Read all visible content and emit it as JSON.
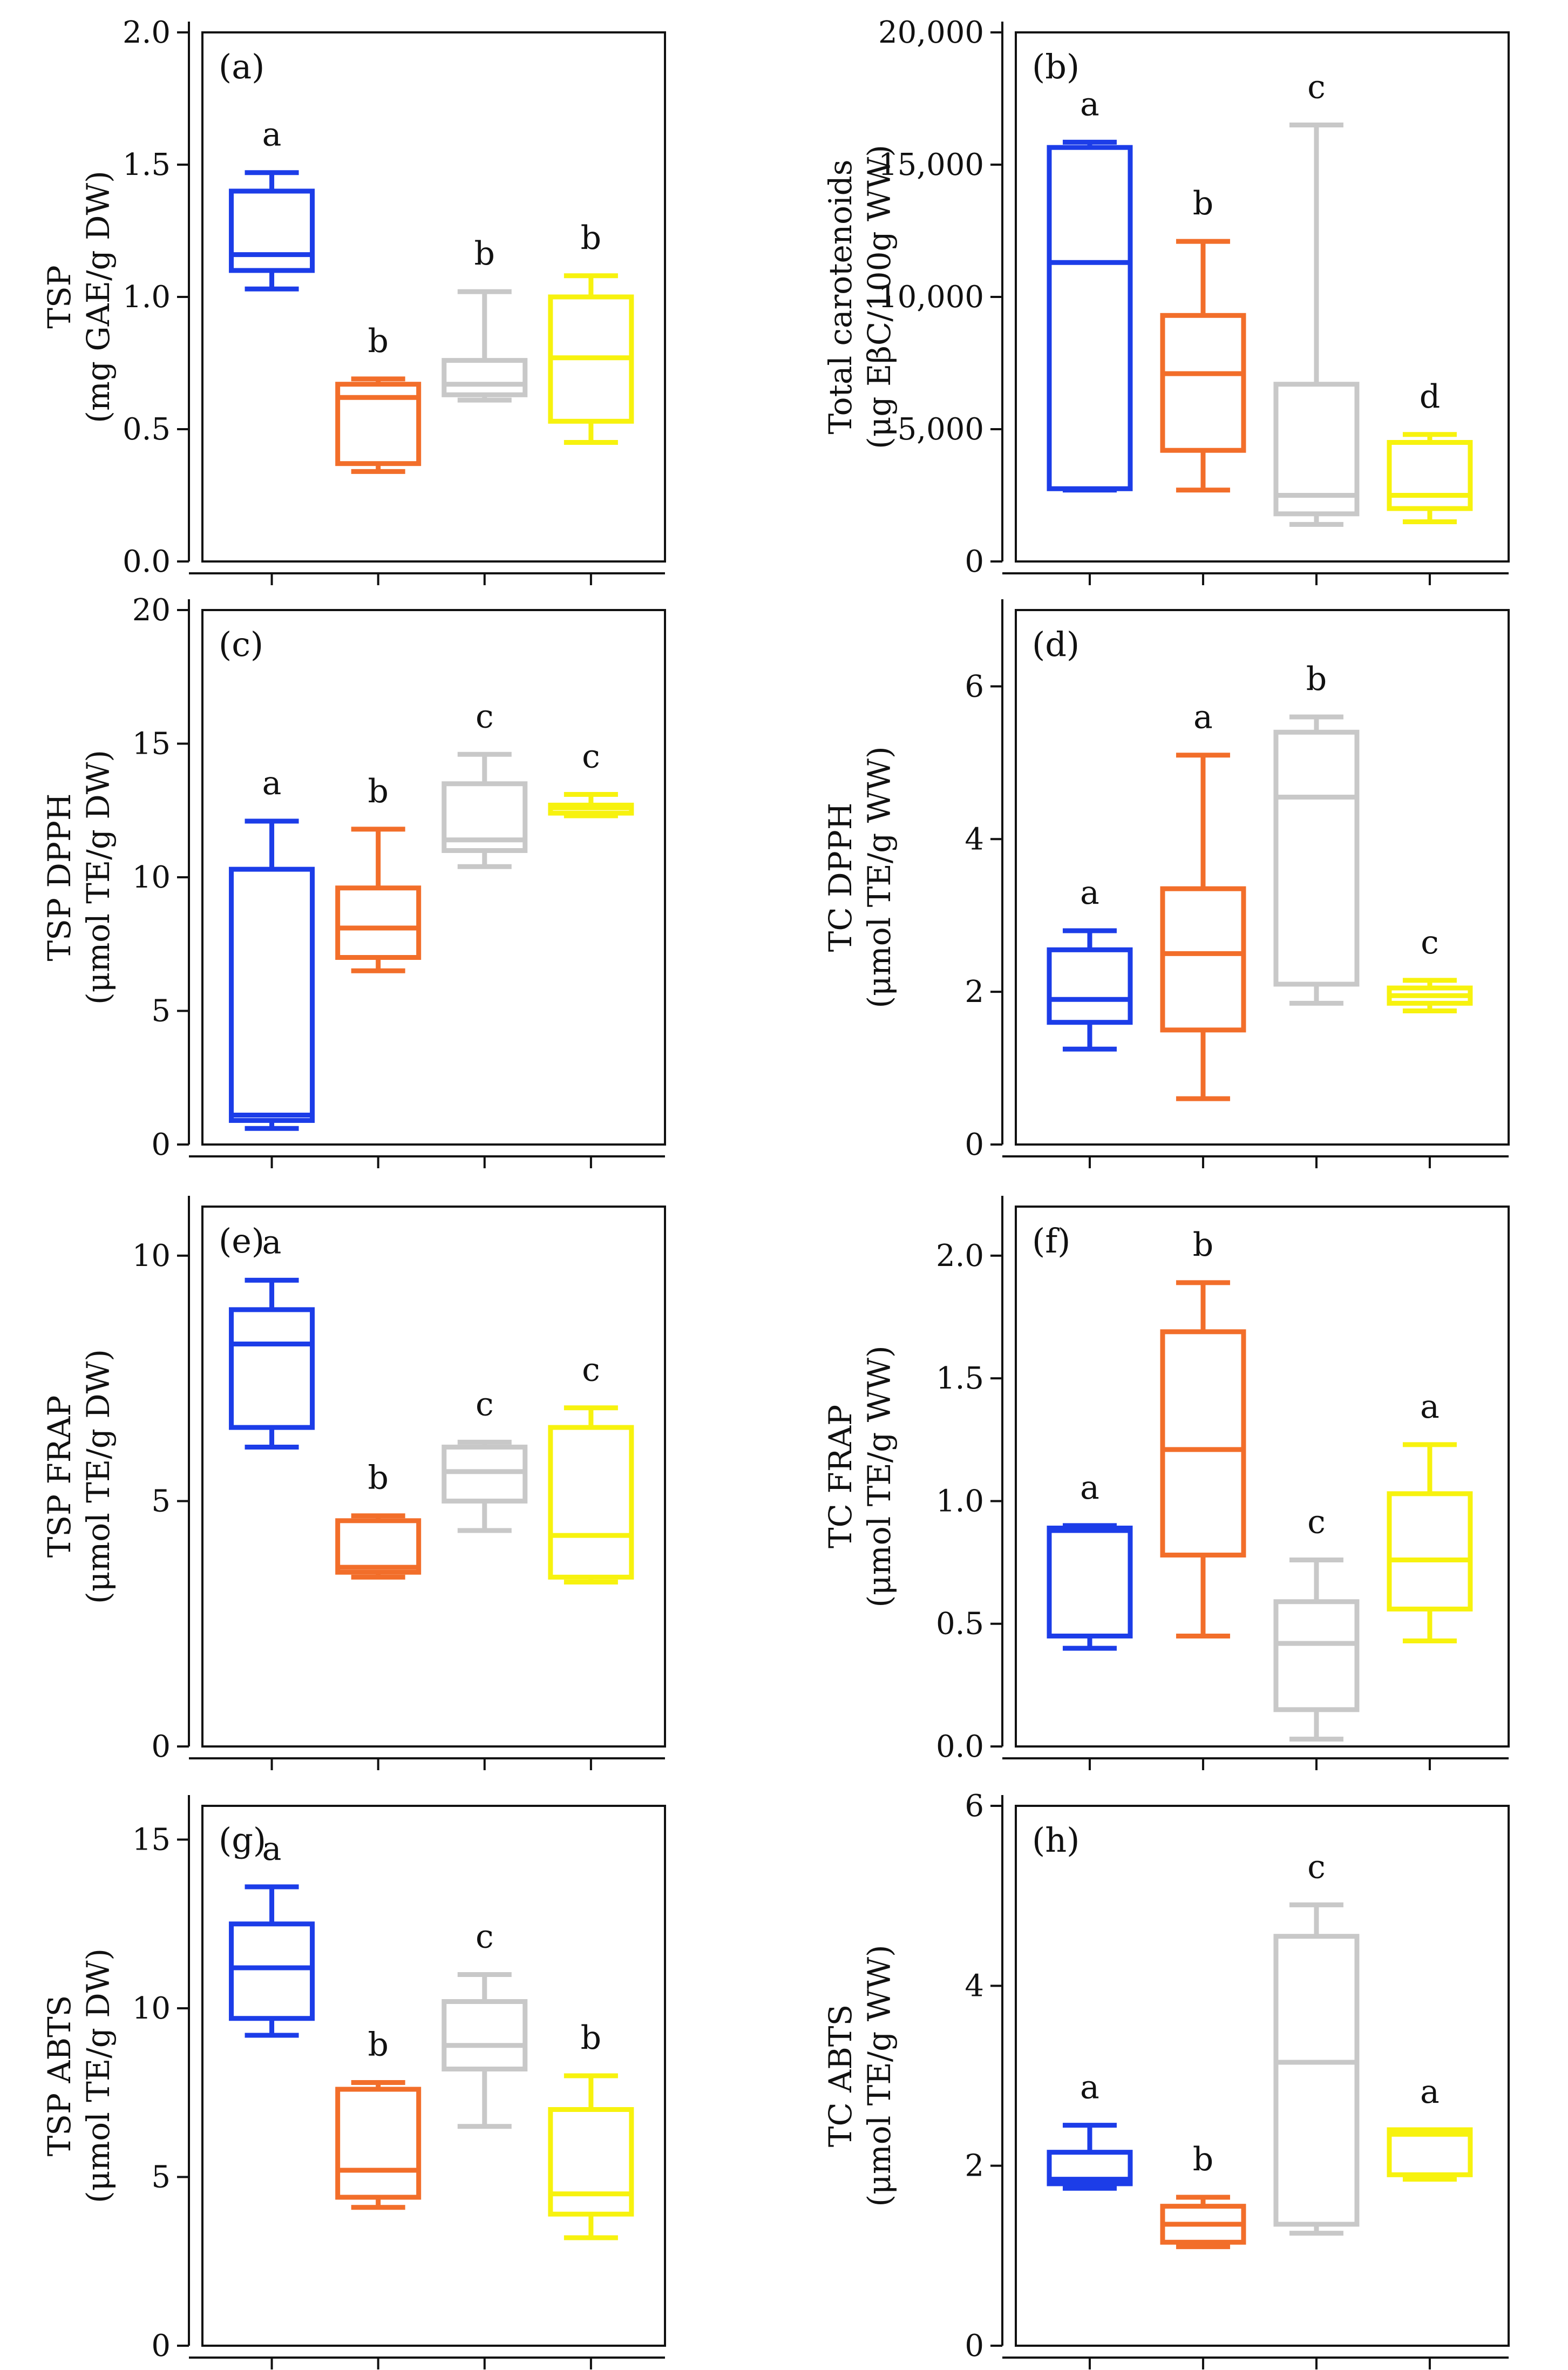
{
  "colors": [
    "#1c3de8",
    "#f26e2a",
    "#c8c8c8",
    "#f7f20e"
  ],
  "chart_data": [
    {
      "type": "box",
      "panel": "(a)",
      "ylabel": [
        "TSP",
        "(mg GAE/g DW)"
      ],
      "ylim": [
        0,
        2.0
      ],
      "yticks": [
        0,
        0.5,
        1.0,
        1.5,
        2.0
      ],
      "ytick_labels": [
        "0.0",
        "0.5",
        "1.0",
        "1.5",
        "2.0"
      ],
      "boxes": [
        {
          "min": 1.03,
          "q1": 1.1,
          "median": 1.16,
          "q3": 1.4,
          "max": 1.47,
          "letter": "a"
        },
        {
          "min": 0.34,
          "q1": 0.37,
          "median": 0.62,
          "q3": 0.67,
          "max": 0.69,
          "letter": "b"
        },
        {
          "min": 0.61,
          "q1": 0.63,
          "median": 0.67,
          "q3": 0.76,
          "max": 1.02,
          "letter": "b"
        },
        {
          "min": 0.45,
          "q1": 0.53,
          "median": 0.77,
          "q3": 1.0,
          "max": 1.08,
          "letter": "b"
        }
      ]
    },
    {
      "type": "box",
      "panel": "(b)",
      "ylabel": [
        "Total carotenoids",
        "(μg EβC/100g WW)"
      ],
      "ylim": [
        0,
        20000
      ],
      "yticks": [
        0,
        5000,
        10000,
        15000,
        20000
      ],
      "ytick_labels": [
        "0",
        "5,000",
        "10,000",
        "15,000",
        "20,000"
      ],
      "boxes": [
        {
          "min": 2700,
          "q1": 2750,
          "median": 11300,
          "q3": 15650,
          "max": 15850,
          "letter": "a"
        },
        {
          "min": 2700,
          "q1": 4200,
          "median": 7100,
          "q3": 9300,
          "max": 12100,
          "letter": "b"
        },
        {
          "min": 1400,
          "q1": 1800,
          "median": 2500,
          "q3": 6700,
          "max": 16500,
          "letter": "c"
        },
        {
          "min": 1500,
          "q1": 2000,
          "median": 2500,
          "q3": 4500,
          "max": 4800,
          "letter": "d"
        }
      ]
    },
    {
      "type": "box",
      "panel": "(c)",
      "ylabel": [
        "TSP DPPH",
        "(μmol TE/g DW)"
      ],
      "ylim": [
        0,
        20
      ],
      "yticks": [
        0,
        5,
        10,
        15,
        20
      ],
      "ytick_labels": [
        "0",
        "5",
        "10",
        "15",
        "20"
      ],
      "boxes": [
        {
          "min": 0.6,
          "q1": 0.9,
          "median": 1.1,
          "q3": 10.3,
          "max": 12.1,
          "letter": "a"
        },
        {
          "min": 6.5,
          "q1": 7.0,
          "median": 8.1,
          "q3": 9.6,
          "max": 11.8,
          "letter": "b"
        },
        {
          "min": 10.4,
          "q1": 11.0,
          "median": 11.4,
          "q3": 13.5,
          "max": 14.6,
          "letter": "c"
        },
        {
          "min": 12.3,
          "q1": 12.4,
          "median": 12.6,
          "q3": 12.7,
          "max": 13.1,
          "letter": "c"
        }
      ]
    },
    {
      "type": "box",
      "panel": "(d)",
      "ylabel": [
        "TC DPPH",
        "(μmol TE/g WW)"
      ],
      "ylim": [
        0,
        7
      ],
      "yticks": [
        0,
        2,
        4,
        6
      ],
      "ytick_labels": [
        "0",
        "2",
        "4",
        "6"
      ],
      "boxes": [
        {
          "min": 1.25,
          "q1": 1.6,
          "median": 1.9,
          "q3": 2.55,
          "max": 2.8,
          "letter": "a"
        },
        {
          "min": 0.6,
          "q1": 1.5,
          "median": 2.5,
          "q3": 3.35,
          "max": 5.1,
          "letter": "a"
        },
        {
          "min": 1.85,
          "q1": 2.1,
          "median": 4.55,
          "q3": 5.4,
          "max": 5.6,
          "letter": "b"
        },
        {
          "min": 1.75,
          "q1": 1.85,
          "median": 1.95,
          "q3": 2.05,
          "max": 2.15,
          "letter": "c"
        }
      ]
    },
    {
      "type": "box",
      "panel": "(e)",
      "ylabel": [
        "TSP FRAP",
        "(μmol TE/g DW)"
      ],
      "ylim": [
        0,
        11
      ],
      "yticks": [
        0,
        5,
        10
      ],
      "ytick_labels": [
        "0",
        "5",
        "10"
      ],
      "boxes": [
        {
          "min": 6.1,
          "q1": 6.5,
          "median": 8.2,
          "q3": 8.9,
          "max": 9.5,
          "letter": "a"
        },
        {
          "min": 3.45,
          "q1": 3.55,
          "median": 3.65,
          "q3": 4.6,
          "max": 4.7,
          "letter": "b"
        },
        {
          "min": 4.4,
          "q1": 5.0,
          "median": 5.6,
          "q3": 6.1,
          "max": 6.2,
          "letter": "c"
        },
        {
          "min": 3.35,
          "q1": 3.45,
          "median": 4.3,
          "q3": 6.5,
          "max": 6.9,
          "letter": "c"
        }
      ]
    },
    {
      "type": "box",
      "panel": "(f)",
      "ylabel": [
        "TC FRAP",
        "(μmol TE/g WW)"
      ],
      "ylim": [
        0,
        2.2
      ],
      "yticks": [
        0,
        0.5,
        1.0,
        1.5,
        2.0
      ],
      "ytick_labels": [
        "0.0",
        "0.5",
        "1.0",
        "1.5",
        "2.0"
      ],
      "boxes": [
        {
          "min": 0.4,
          "q1": 0.45,
          "median": 0.88,
          "q3": 0.89,
          "max": 0.9,
          "letter": "a"
        },
        {
          "min": 0.45,
          "q1": 0.78,
          "median": 1.21,
          "q3": 1.69,
          "max": 1.89,
          "letter": "b"
        },
        {
          "min": 0.03,
          "q1": 0.15,
          "median": 0.42,
          "q3": 0.59,
          "max": 0.76,
          "letter": "c"
        },
        {
          "min": 0.43,
          "q1": 0.56,
          "median": 0.76,
          "q3": 1.03,
          "max": 1.23,
          "letter": "a"
        }
      ]
    },
    {
      "type": "box",
      "panel": "(g)",
      "ylabel": [
        "TSP ABTS",
        "(μmol TE/g DW)"
      ],
      "ylim": [
        0,
        16
      ],
      "yticks": [
        0,
        5,
        10,
        15
      ],
      "ytick_labels": [
        "0",
        "5",
        "10",
        "15"
      ],
      "boxes": [
        {
          "min": 9.2,
          "q1": 9.7,
          "median": 11.2,
          "q3": 12.5,
          "max": 13.6,
          "letter": "a"
        },
        {
          "min": 4.1,
          "q1": 4.4,
          "median": 5.2,
          "q3": 7.6,
          "max": 7.8,
          "letter": "b"
        },
        {
          "min": 6.5,
          "q1": 8.2,
          "median": 8.9,
          "q3": 10.2,
          "max": 11.0,
          "letter": "c"
        },
        {
          "min": 3.2,
          "q1": 3.9,
          "median": 4.5,
          "q3": 7.0,
          "max": 8.0,
          "letter": "b"
        }
      ]
    },
    {
      "type": "box",
      "panel": "(h)",
      "ylabel": [
        "TC ABTS",
        "(μmol TE/g WW)"
      ],
      "ylim": [
        0,
        6
      ],
      "yticks": [
        0,
        2,
        4,
        6
      ],
      "ytick_labels": [
        "0",
        "2",
        "4",
        "6"
      ],
      "boxes": [
        {
          "min": 1.75,
          "q1": 1.8,
          "median": 1.85,
          "q3": 2.15,
          "max": 2.45,
          "letter": "a"
        },
        {
          "min": 1.1,
          "q1": 1.15,
          "median": 1.35,
          "q3": 1.55,
          "max": 1.65,
          "letter": "b"
        },
        {
          "min": 1.25,
          "q1": 1.35,
          "median": 3.15,
          "q3": 4.55,
          "max": 4.9,
          "letter": "c"
        },
        {
          "min": 1.85,
          "q1": 1.9,
          "median": 2.35,
          "q3": 2.4,
          "max": 2.4,
          "letter": "a"
        }
      ]
    }
  ]
}
